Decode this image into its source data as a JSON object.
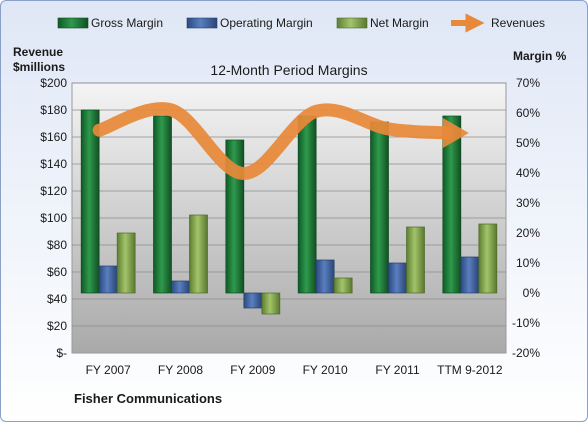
{
  "chart_data": {
    "type": "bar",
    "title": "12-Month Period Margins",
    "company": "Fisher Communications",
    "categories": [
      "FY 2007",
      "FY 2008",
      "FY 2009",
      "FY 2010",
      "FY 2011",
      "TTM 9-2012"
    ],
    "left_axis": {
      "label_line1": "Revenue",
      "label_line2": "$millions",
      "ylim": [
        0,
        200
      ],
      "ticks": [
        0,
        20,
        40,
        60,
        80,
        100,
        120,
        140,
        160,
        180,
        200
      ],
      "tick_labels": [
        "$-",
        "$20",
        "$40",
        "$60",
        "$80",
        "$100",
        "$120",
        "$140",
        "$160",
        "$180",
        "$200"
      ]
    },
    "right_axis": {
      "label": "Margin %",
      "ylim": [
        -20,
        70
      ],
      "ticks": [
        -20,
        -10,
        0,
        10,
        20,
        30,
        40,
        50,
        60,
        70
      ],
      "tick_labels": [
        "-20%",
        "-10%",
        "0%",
        "10%",
        "20%",
        "30%",
        "40%",
        "50%",
        "60%",
        "70%"
      ]
    },
    "series": [
      {
        "name": "Gross Margin",
        "axis": "right",
        "kind": "bar",
        "color": "#1f7a3a",
        "values": [
          61,
          59,
          51,
          59,
          57,
          59
        ]
      },
      {
        "name": "Operating Margin",
        "axis": "right",
        "kind": "bar",
        "color": "#3a5e9c",
        "values": [
          9,
          4,
          -5,
          11,
          10,
          12
        ]
      },
      {
        "name": "Net Margin",
        "axis": "right",
        "kind": "bar",
        "color": "#7ea24a",
        "values": [
          20,
          26,
          -7,
          5,
          22,
          23
        ]
      },
      {
        "name": "Revenues",
        "axis": "left",
        "kind": "line",
        "color": "#e8893a",
        "values": [
          165,
          180,
          133,
          179,
          166,
          163
        ]
      }
    ],
    "grid": true,
    "legend_position": "top"
  }
}
